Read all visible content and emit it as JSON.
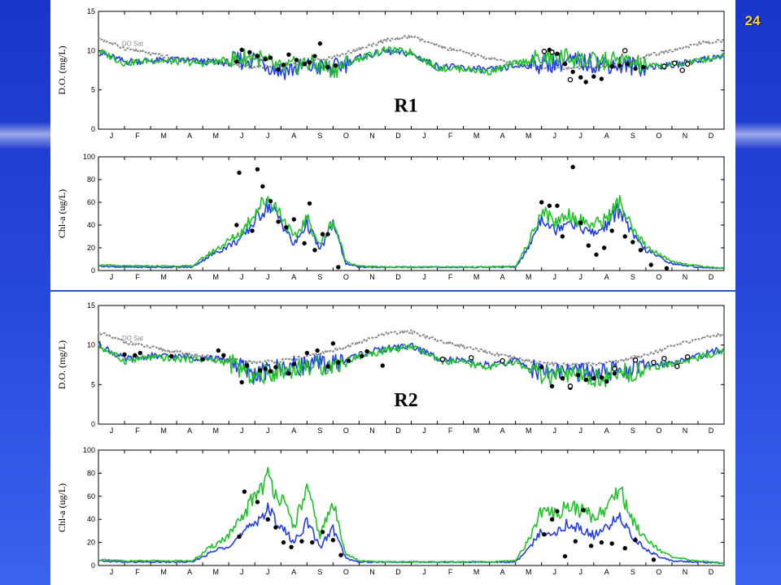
{
  "slide": {
    "number": "24"
  },
  "months": [
    "J",
    "F",
    "M",
    "A",
    "M",
    "J",
    "J",
    "A",
    "S",
    "O",
    "N",
    "D",
    "J",
    "F",
    "M",
    "A",
    "M",
    "J",
    "J",
    "A",
    "S",
    "O",
    "N",
    "D"
  ],
  "colors": {
    "model_a": "#2440e0",
    "model_b": "#22c02a",
    "saturation": "#8a8a8a",
    "obs": "#000000"
  },
  "chart_data": [
    {
      "type": "line",
      "label": "R1",
      "ylabel": "D.O. (mg/L)",
      "ylim": [
        0,
        15
      ],
      "yticks": [
        0,
        5,
        10,
        15
      ],
      "annotation": "DO Sat",
      "x": [
        0,
        1,
        2,
        3,
        4,
        5,
        6,
        7,
        8,
        9,
        10,
        11,
        12,
        13,
        14,
        15,
        16,
        17,
        18,
        19,
        20,
        21,
        22,
        23,
        24
      ],
      "series": [
        {
          "role": "saturation",
          "values": [
            11.6,
            10.3,
            9.6,
            9.0,
            8.7,
            8.2,
            7.9,
            8.1,
            8.5,
            9.2,
            10.2,
            11.3,
            11.8,
            10.6,
            9.8,
            9.0,
            8.3,
            7.8,
            7.7,
            7.9,
            8.4,
            9.3,
            10.0,
            10.9,
            11.3
          ]
        },
        {
          "role": "model_a",
          "values": [
            9.8,
            8.6,
            8.7,
            8.8,
            8.6,
            8.5,
            9.0,
            7.4,
            8.0,
            7.7,
            9.1,
            9.9,
            9.6,
            8.0,
            7.8,
            7.5,
            8.0,
            8.3,
            8.6,
            8.4,
            8.2,
            7.9,
            8.1,
            8.8,
            9.3
          ]
        },
        {
          "role": "model_b",
          "values": [
            10.0,
            8.4,
            8.8,
            8.6,
            8.4,
            8.8,
            9.3,
            7.6,
            8.4,
            7.6,
            9.0,
            10.1,
            9.8,
            7.8,
            7.7,
            7.3,
            8.4,
            9.0,
            9.2,
            8.6,
            8.8,
            8.0,
            8.2,
            8.7,
            9.4
          ]
        }
      ],
      "observations": {
        "filled": [
          [
            5.3,
            8.6
          ],
          [
            5.5,
            10.1
          ],
          [
            5.8,
            9.8
          ],
          [
            6.1,
            9.3
          ],
          [
            6.4,
            8.9
          ],
          [
            6.6,
            9.1
          ],
          [
            6.9,
            7.6
          ],
          [
            7.1,
            8.2
          ],
          [
            7.3,
            9.5
          ],
          [
            7.6,
            8.8
          ],
          [
            7.9,
            8.3
          ],
          [
            8.1,
            8.5
          ],
          [
            8.3,
            9.3
          ],
          [
            8.5,
            10.9
          ],
          [
            8.8,
            7.9
          ],
          [
            9.1,
            8.1
          ],
          [
            17.3,
            10.1
          ],
          [
            17.6,
            9.6
          ],
          [
            17.9,
            8.3
          ],
          [
            18.2,
            7.3
          ],
          [
            18.5,
            6.6
          ],
          [
            18.7,
            6.0
          ],
          [
            19.0,
            6.7
          ],
          [
            19.3,
            6.4
          ],
          [
            19.7,
            8.0
          ],
          [
            20.0,
            8.1
          ],
          [
            20.3,
            8.3
          ],
          [
            20.6,
            7.7
          ],
          [
            20.9,
            7.9
          ]
        ],
        "open": [
          [
            17.1,
            9.9
          ],
          [
            17.4,
            9.8
          ],
          [
            18.1,
            6.3
          ],
          [
            20.2,
            10.0
          ],
          [
            21.7,
            8.0
          ],
          [
            22.1,
            8.4
          ],
          [
            22.4,
            7.5
          ],
          [
            22.6,
            8.3
          ]
        ]
      }
    },
    {
      "type": "line",
      "label": "",
      "ylabel": "Chl-a (ug/L)",
      "ylim": [
        0,
        100
      ],
      "yticks": [
        0,
        20,
        40,
        60,
        80,
        100
      ],
      "x": [
        0,
        1,
        2,
        3,
        3.6,
        4.2,
        5,
        5.5,
        6,
        6.5,
        7,
        7.5,
        8,
        8.5,
        9,
        9.5,
        10,
        11,
        12,
        13,
        14,
        15,
        16,
        16.5,
        17,
        17.5,
        18,
        18.5,
        19,
        19.5,
        20,
        20.5,
        21,
        21.5,
        22,
        23,
        24
      ],
      "series": [
        {
          "role": "model_a",
          "values": [
            4,
            3,
            3,
            3,
            3,
            12,
            22,
            28,
            44,
            58,
            44,
            22,
            42,
            18,
            42,
            6,
            3,
            3,
            3,
            3,
            3,
            3,
            3,
            20,
            48,
            35,
            45,
            38,
            32,
            40,
            55,
            30,
            18,
            12,
            6,
            3,
            2
          ]
        },
        {
          "role": "model_b",
          "values": [
            5,
            4,
            4,
            4,
            4,
            14,
            26,
            34,
            52,
            64,
            50,
            28,
            46,
            22,
            44,
            8,
            4,
            3,
            3,
            3,
            3,
            3,
            4,
            24,
            54,
            42,
            50,
            44,
            40,
            46,
            60,
            34,
            22,
            14,
            8,
            4,
            2
          ]
        }
      ],
      "observations": {
        "filled": [
          [
            5.3,
            40
          ],
          [
            5.4,
            86
          ],
          [
            5.9,
            35
          ],
          [
            6.1,
            89
          ],
          [
            6.3,
            74
          ],
          [
            6.6,
            61
          ],
          [
            6.9,
            43
          ],
          [
            7.2,
            38
          ],
          [
            7.5,
            45
          ],
          [
            7.9,
            24
          ],
          [
            8.1,
            59
          ],
          [
            8.3,
            18
          ],
          [
            8.6,
            32
          ],
          [
            8.8,
            32
          ],
          [
            9.2,
            3
          ],
          [
            17.0,
            60
          ],
          [
            17.3,
            57
          ],
          [
            17.6,
            57
          ],
          [
            17.8,
            30
          ],
          [
            18.2,
            91
          ],
          [
            18.5,
            42
          ],
          [
            18.8,
            22
          ],
          [
            19.1,
            14
          ],
          [
            19.4,
            20
          ],
          [
            19.7,
            35
          ],
          [
            20.2,
            30
          ],
          [
            20.5,
            25
          ],
          [
            20.8,
            18
          ],
          [
            21.2,
            5
          ],
          [
            21.8,
            2
          ]
        ],
        "open": []
      }
    },
    {
      "type": "line",
      "label": "R2",
      "ylabel": "D.O. (mg/L)",
      "ylim": [
        0,
        15
      ],
      "yticks": [
        0,
        5,
        10,
        15
      ],
      "annotation": "DO Sat",
      "x": [
        0,
        1,
        2,
        3,
        4,
        5,
        6,
        7,
        8,
        9,
        10,
        11,
        12,
        13,
        14,
        15,
        16,
        17,
        18,
        19,
        20,
        21,
        22,
        23,
        24
      ],
      "series": [
        {
          "role": "saturation",
          "values": [
            11.6,
            10.4,
            9.7,
            9.1,
            8.6,
            8.1,
            7.8,
            8.0,
            8.5,
            9.3,
            10.3,
            11.4,
            11.7,
            10.6,
            9.8,
            9.0,
            8.3,
            7.7,
            7.5,
            7.6,
            8.0,
            8.8,
            9.8,
            10.8,
            11.4
          ]
        },
        {
          "role": "model_a",
          "values": [
            10.1,
            8.2,
            8.6,
            8.5,
            8.4,
            8.1,
            6.2,
            7.2,
            7.5,
            7.6,
            8.8,
            9.5,
            9.9,
            8.4,
            7.9,
            7.4,
            8.0,
            6.6,
            6.8,
            6.3,
            6.8,
            7.4,
            7.8,
            8.6,
            9.5
          ]
        },
        {
          "role": "model_b",
          "values": [
            9.9,
            8.0,
            8.4,
            8.3,
            8.2,
            7.8,
            6.0,
            6.8,
            7.3,
            7.4,
            8.6,
            9.3,
            9.8,
            8.1,
            7.7,
            7.2,
            7.8,
            6.0,
            6.1,
            5.7,
            6.3,
            7.0,
            7.6,
            8.4,
            9.3
          ]
        }
      ],
      "observations": {
        "filled": [
          [
            1.0,
            8.8
          ],
          [
            1.4,
            8.7
          ],
          [
            1.6,
            9.0
          ],
          [
            2.8,
            8.6
          ],
          [
            4.0,
            8.2
          ],
          [
            4.6,
            9.3
          ],
          [
            4.8,
            8.7
          ],
          [
            5.5,
            5.3
          ],
          [
            5.7,
            7.4
          ],
          [
            6.2,
            6.8
          ],
          [
            6.4,
            7.0
          ],
          [
            6.6,
            6.7
          ],
          [
            6.8,
            7.2
          ],
          [
            7.3,
            6.4
          ],
          [
            7.5,
            7.6
          ],
          [
            8.0,
            9.0
          ],
          [
            8.4,
            9.3
          ],
          [
            8.8,
            7.3
          ],
          [
            9.0,
            10.2
          ],
          [
            9.2,
            7.8
          ],
          [
            9.6,
            8.0
          ],
          [
            10.1,
            8.6
          ],
          [
            10.3,
            9.2
          ],
          [
            10.9,
            7.4
          ],
          [
            17.0,
            7.2
          ],
          [
            17.4,
            4.8
          ],
          [
            17.8,
            5.8
          ],
          [
            18.1,
            4.6
          ],
          [
            18.4,
            6.2
          ],
          [
            18.7,
            5.6
          ],
          [
            19.0,
            5.8
          ],
          [
            19.3,
            5.9
          ],
          [
            19.5,
            5.4
          ],
          [
            19.8,
            6.4
          ]
        ],
        "open": [
          [
            13.2,
            8.2
          ],
          [
            14.3,
            8.4
          ],
          [
            15.5,
            8.0
          ],
          [
            18.1,
            4.8
          ],
          [
            19.8,
            7.0
          ],
          [
            20.6,
            8.1
          ],
          [
            21.3,
            7.8
          ],
          [
            21.7,
            8.3
          ],
          [
            22.2,
            7.3
          ],
          [
            22.6,
            8.5
          ]
        ]
      }
    },
    {
      "type": "line",
      "label": "",
      "ylabel": "Chl-a (ug/L)",
      "ylim": [
        0,
        100
      ],
      "yticks": [
        0,
        20,
        40,
        60,
        80,
        100
      ],
      "x": [
        0,
        1,
        2,
        3,
        3.6,
        4.2,
        5,
        5.5,
        6,
        6.5,
        7,
        7.5,
        8,
        8.5,
        9,
        9.5,
        10,
        11,
        12,
        13,
        14,
        15,
        16,
        16.5,
        17,
        17.5,
        18,
        18.5,
        19,
        19.5,
        20,
        20.5,
        21,
        21.5,
        22,
        23,
        24
      ],
      "series": [
        {
          "role": "model_a",
          "values": [
            4,
            3,
            3,
            3,
            3,
            10,
            18,
            26,
            38,
            48,
            34,
            20,
            38,
            16,
            32,
            6,
            3,
            3,
            3,
            3,
            3,
            3,
            3,
            14,
            30,
            28,
            36,
            32,
            26,
            32,
            44,
            24,
            14,
            8,
            4,
            3,
            2
          ]
        },
        {
          "role": "model_b",
          "values": [
            5,
            4,
            4,
            4,
            4,
            14,
            26,
            40,
            62,
            76,
            58,
            34,
            66,
            26,
            54,
            10,
            4,
            3,
            3,
            3,
            3,
            3,
            4,
            22,
            48,
            44,
            52,
            48,
            42,
            50,
            68,
            38,
            24,
            14,
            7,
            4,
            2
          ]
        }
      ],
      "observations": {
        "filled": [
          [
            5.4,
            25
          ],
          [
            5.6,
            64
          ],
          [
            6.1,
            55
          ],
          [
            6.5,
            40
          ],
          [
            6.8,
            33
          ],
          [
            7.1,
            20
          ],
          [
            7.4,
            16
          ],
          [
            7.8,
            21
          ],
          [
            8.2,
            20
          ],
          [
            8.6,
            29
          ],
          [
            9.0,
            22
          ],
          [
            9.3,
            9
          ],
          [
            17.1,
            27
          ],
          [
            17.4,
            40
          ],
          [
            17.6,
            47
          ],
          [
            17.9,
            8
          ],
          [
            18.3,
            21
          ],
          [
            18.6,
            48
          ],
          [
            18.9,
            17
          ],
          [
            19.3,
            20
          ],
          [
            19.7,
            19
          ],
          [
            20.2,
            15
          ],
          [
            20.6,
            22
          ],
          [
            21.3,
            5
          ]
        ],
        "open": []
      }
    }
  ]
}
